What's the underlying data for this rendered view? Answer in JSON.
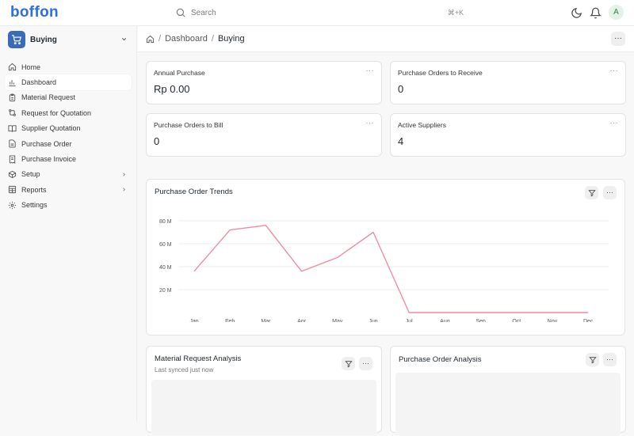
{
  "app": {
    "logo": "boffon"
  },
  "search": {
    "placeholder": "Search",
    "shortcut": "⌘+K"
  },
  "user": {
    "avatar_letter": "A"
  },
  "workspace": {
    "label": "Buying"
  },
  "sidebar": {
    "items": [
      {
        "label": "Home",
        "icon": "home-icon"
      },
      {
        "label": "Dashboard",
        "icon": "chart-icon",
        "active": true
      },
      {
        "label": "Material Request",
        "icon": "clipboard-icon"
      },
      {
        "label": "Request for Quotation",
        "icon": "git-compare-icon"
      },
      {
        "label": "Supplier Quotation",
        "icon": "book-icon"
      },
      {
        "label": "Purchase Order",
        "icon": "file-text-icon"
      },
      {
        "label": "Purchase Invoice",
        "icon": "receipt-icon"
      },
      {
        "label": "Setup",
        "icon": "package-icon",
        "expandable": true
      },
      {
        "label": "Reports",
        "icon": "table-icon",
        "expandable": true
      },
      {
        "label": "Settings",
        "icon": "gear-icon"
      }
    ]
  },
  "breadcrumb": {
    "level1": "Dashboard",
    "level2": "Buying",
    "sep": "/"
  },
  "cards": [
    {
      "title": "Annual Purchase",
      "value": "Rp 0.00"
    },
    {
      "title": "Purchase Orders to Receive",
      "value": "0"
    },
    {
      "title": "Purchase Orders to Bill",
      "value": "0"
    },
    {
      "title": "Active Suppliers",
      "value": "4"
    }
  ],
  "trend_chart": {
    "title": "Purchase Order Trends"
  },
  "material_request": {
    "title": "Material Request Analysis",
    "note": "Last synced just now"
  },
  "po_analysis": {
    "title": "Purchase Order Analysis"
  },
  "colors": {
    "accent": "#2c6fe0",
    "line": "#e98ea3"
  },
  "chart_data": {
    "type": "line",
    "title": "Purchase Order Trends",
    "categories": [
      "Jan",
      "Feb",
      "Mar",
      "Apr",
      "May",
      "Jun",
      "Jul",
      "Aug",
      "Sep",
      "Oct",
      "Nov",
      "Dec"
    ],
    "series": [
      {
        "values": [
          36,
          72,
          76,
          36,
          48,
          70,
          0,
          0,
          0,
          0,
          0,
          0
        ]
      }
    ],
    "y_ticks": [
      "20 M",
      "40 M",
      "60 M",
      "80 M"
    ],
    "y_tick_values": [
      20,
      40,
      60,
      80
    ],
    "ylim": [
      0,
      80
    ],
    "grid": true
  }
}
